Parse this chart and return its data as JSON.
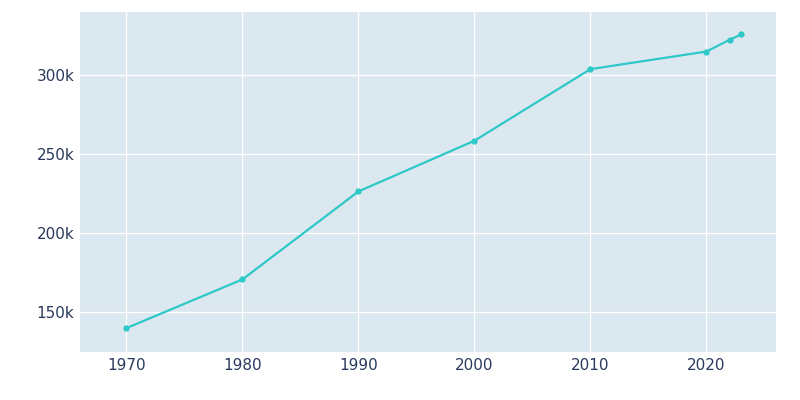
{
  "years": [
    1970,
    1980,
    1990,
    2000,
    2010,
    2020,
    2022,
    2023
  ],
  "population": [
    140089,
    170876,
    226505,
    258583,
    303871,
    314998,
    322424,
    325860
  ],
  "line_color": "#2ec8c8",
  "marker_color": "#2ec8c8",
  "plot_bg_color": "#dce8f0",
  "outer_bg_color": "#ffffff",
  "grid_color": "#ffffff",
  "tick_label_color": "#2a3a5c",
  "xlim": [
    1966,
    2026
  ],
  "ylim": [
    125000,
    340000
  ],
  "yticks": [
    150000,
    200000,
    250000,
    300000
  ],
  "ytick_labels": [
    "150k",
    "200k",
    "250k",
    "300k"
  ],
  "xticks": [
    1970,
    1980,
    1990,
    2000,
    2010,
    2020
  ],
  "figsize": [
    8.0,
    4.0
  ],
  "dpi": 100
}
